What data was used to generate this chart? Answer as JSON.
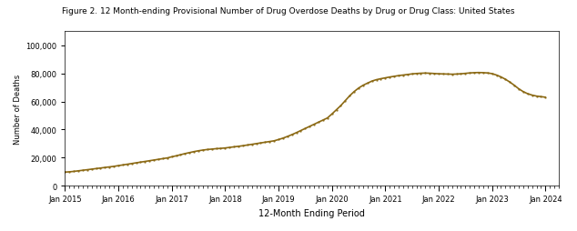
{
  "title": "Figure 2. 12 Month-ending Provisional Number of Drug Overdose Deaths by Drug or Drug Class: United States",
  "xlabel": "12-Month Ending Period",
  "ylabel": "Number of Deaths",
  "ylim": [
    0,
    110000
  ],
  "yticks": [
    0,
    20000,
    40000,
    60000,
    80000,
    100000
  ],
  "ytick_labels": [
    "0",
    "20,000",
    "40,000",
    "60,000",
    "80,000",
    "100,000"
  ],
  "line_color": "#8B6914",
  "dot_color": "#8B6914",
  "bg_color": "#ffffff",
  "x_start_year": 2015,
  "x_end_year": 2024,
  "xtick_years": [
    2015,
    2016,
    2017,
    2018,
    2019,
    2020,
    2021,
    2022,
    2023,
    2024
  ],
  "data_months": [
    0,
    1,
    2,
    3,
    4,
    5,
    6,
    7,
    8,
    9,
    10,
    11,
    12,
    13,
    14,
    15,
    16,
    17,
    18,
    19,
    20,
    21,
    22,
    23,
    24,
    25,
    26,
    27,
    28,
    29,
    30,
    31,
    32,
    33,
    34,
    35,
    36,
    37,
    38,
    39,
    40,
    41,
    42,
    43,
    44,
    45,
    46,
    47,
    48,
    49,
    50,
    51,
    52,
    53,
    54,
    55,
    56,
    57,
    58,
    59,
    60,
    61,
    62,
    63,
    64,
    65,
    66,
    67,
    68,
    69,
    70,
    71,
    72,
    73,
    74,
    75,
    76,
    77,
    78,
    79,
    80,
    81,
    82,
    83,
    84,
    85,
    86,
    87,
    88,
    89,
    90,
    91,
    92,
    93,
    94,
    95,
    96,
    97,
    98,
    99,
    100,
    101,
    102,
    103,
    104,
    105,
    106,
    107,
    108
  ],
  "data_values": [
    9580,
    9800,
    10100,
    10500,
    10900,
    11300,
    11700,
    12100,
    12500,
    12900,
    13300,
    13700,
    14200,
    14700,
    15200,
    15700,
    16200,
    16700,
    17200,
    17700,
    18200,
    18700,
    19200,
    19700,
    20500,
    21200,
    22000,
    22800,
    23500,
    24200,
    24800,
    25300,
    25700,
    26000,
    26300,
    26500,
    26800,
    27200,
    27600,
    28000,
    28400,
    28900,
    29400,
    29900,
    30400,
    30900,
    31400,
    31900,
    32800,
    33800,
    35000,
    36300,
    37700,
    39200,
    40700,
    42200,
    43700,
    45200,
    46700,
    48200,
    51000,
    54000,
    57000,
    60500,
    64000,
    67000,
    69500,
    71500,
    73000,
    74500,
    75500,
    76200,
    76800,
    77400,
    77900,
    78400,
    78800,
    79200,
    79600,
    79900,
    80100,
    80200,
    80100,
    79900,
    79700,
    79600,
    79500,
    79400,
    79500,
    79700,
    80000,
    80300,
    80500,
    80600,
    80500,
    80300,
    79800,
    78800,
    77500,
    75800,
    73800,
    71500,
    69000,
    67000,
    65500,
    64500,
    63800,
    63400,
    63000
  ]
}
